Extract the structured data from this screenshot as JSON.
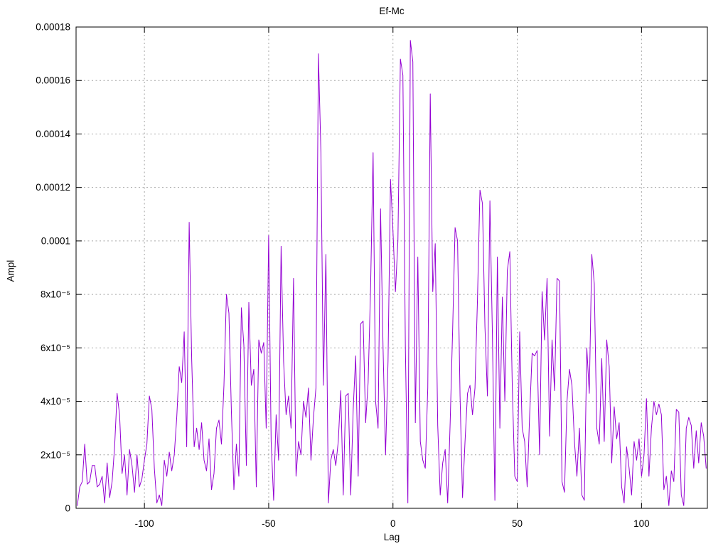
{
  "chart_data": {
    "type": "line",
    "title": "Ef-Mc",
    "xlabel": "Lag",
    "ylabel": "Ampl",
    "legend": "none",
    "grid": true,
    "background_color": "#ffffff",
    "line_color": "#9400d3",
    "grid_color": "#a6a6a6",
    "border_color": "#000000",
    "xlim": [
      -127.5,
      126.5
    ],
    "ylim": [
      0,
      0.00018
    ],
    "xticks": [
      {
        "v": -100,
        "label": "-100"
      },
      {
        "v": -50,
        "label": "-50"
      },
      {
        "v": 0,
        "label": "0"
      },
      {
        "v": 50,
        "label": "50"
      },
      {
        "v": 100,
        "label": "100"
      }
    ],
    "yticks": [
      {
        "v": 0,
        "label": "0"
      },
      {
        "v": 2e-05,
        "label": "2x10⁻⁵"
      },
      {
        "v": 4e-05,
        "label": "4x10⁻⁵"
      },
      {
        "v": 6e-05,
        "label": "6x10⁻⁵"
      },
      {
        "v": 8e-05,
        "label": "8x10⁻⁵"
      },
      {
        "v": 0.0001,
        "label": "0.0001"
      },
      {
        "v": 0.00012,
        "label": "0.00012"
      },
      {
        "v": 0.00014,
        "label": "0.00014"
      },
      {
        "v": 0.00016,
        "label": "0.00016"
      },
      {
        "v": 0.00018,
        "label": "0.00018"
      }
    ],
    "x_start": -127,
    "x_step": 1,
    "series": [
      {
        "name": "Ef-Mc",
        "values": [
          1e-06,
          8e-06,
          1e-05,
          2.4e-05,
          9e-06,
          1e-05,
          1.6e-05,
          1.6e-05,
          8e-06,
          9e-06,
          1.2e-05,
          2e-06,
          1.7e-05,
          4e-06,
          1e-05,
          2.3e-05,
          4.3e-05,
          3.5e-05,
          1.3e-05,
          2e-05,
          5e-06,
          2.2e-05,
          1.6e-05,
          6e-06,
          2e-05,
          8e-06,
          1.1e-05,
          1.8e-05,
          2.4e-05,
          4.2e-05,
          3.7e-05,
          1.5e-05,
          2e-06,
          5e-06,
          1e-06,
          1.8e-05,
          1.2e-05,
          2.1e-05,
          1.4e-05,
          2e-05,
          3.4e-05,
          5.3e-05,
          4.7e-05,
          6.6e-05,
          2.3e-05,
          0.000107,
          5.6e-05,
          2.3e-05,
          3e-05,
          2.2e-05,
          3.2e-05,
          1.8e-05,
          1.4e-05,
          2.6e-05,
          7e-06,
          1.3e-05,
          3e-05,
          3.3e-05,
          2.4e-05,
          4.6e-05,
          8e-05,
          7.3e-05,
          3.6e-05,
          7e-06,
          2.4e-05,
          1.2e-05,
          7.5e-05,
          6.1e-05,
          1.6e-05,
          7.7e-05,
          4.6e-05,
          5.2e-05,
          8e-06,
          6.3e-05,
          5.8e-05,
          6.2e-05,
          3e-05,
          0.000102,
          2.5e-05,
          3e-06,
          3.5e-05,
          1.8e-05,
          9.8e-05,
          5.5e-05,
          3.5e-05,
          4.2e-05,
          3e-05,
          8.6e-05,
          1.2e-05,
          2.5e-05,
          2e-05,
          4e-05,
          3.4e-05,
          4.5e-05,
          1.8e-05,
          3.4e-05,
          4.5e-05,
          0.00017,
          0.000133,
          4.6e-05,
          9.5e-05,
          2e-06,
          1.8e-05,
          2.2e-05,
          1.6e-05,
          2.5e-05,
          4.4e-05,
          5e-06,
          4.2e-05,
          4.3e-05,
          5e-06,
          3.7e-05,
          5.7e-05,
          1.2e-05,
          6.9e-05,
          7e-05,
          3.2e-05,
          4.7e-05,
          8.3e-05,
          0.000133,
          4e-05,
          3e-05,
          0.000112,
          6e-05,
          2e-05,
          5.5e-05,
          0.000123,
          0.000104,
          8.1e-05,
          0.0001,
          0.000168,
          0.000162,
          6e-05,
          2e-06,
          0.000175,
          0.000167,
          3.2e-05,
          9.4e-05,
          2.5e-05,
          1.8e-05,
          1.5e-05,
          4.5e-05,
          0.000155,
          8.1e-05,
          9.9e-05,
          3.1e-05,
          5e-06,
          1.7e-05,
          2.2e-05,
          2e-06,
          3.2e-05,
          6.7e-05,
          0.000105,
          0.0001,
          4.2e-05,
          4e-06,
          2.5e-05,
          4.3e-05,
          4.6e-05,
          3.5e-05,
          4.5e-05,
          7.8e-05,
          0.000119,
          0.000114,
          6.8e-05,
          4.2e-05,
          0.000115,
          6.5e-05,
          3e-06,
          9.4e-05,
          3e-05,
          7.9e-05,
          4e-05,
          8.9e-05,
          9.6e-05,
          4.5e-05,
          1.2e-05,
          1e-05,
          6.6e-05,
          3e-05,
          2.5e-05,
          8e-06,
          3.5e-05,
          5.8e-05,
          5.7e-05,
          5.9e-05,
          2e-05,
          8.1e-05,
          6.3e-05,
          8.6e-05,
          2.7e-05,
          6.3e-05,
          4.4e-05,
          8.6e-05,
          8.5e-05,
          1e-05,
          6e-06,
          4e-05,
          5.2e-05,
          4.6e-05,
          2.5e-05,
          1.2e-05,
          3e-05,
          5e-06,
          3e-06,
          6e-05,
          4.3e-05,
          9.5e-05,
          8.4e-05,
          3e-05,
          2.4e-05,
          5.6e-05,
          2.5e-05,
          6.3e-05,
          5.3e-05,
          1.7e-05,
          3.8e-05,
          2.6e-05,
          3.2e-05,
          8e-06,
          2e-06,
          2.3e-05,
          1.5e-05,
          5e-06,
          2.5e-05,
          1.8e-05,
          2.6e-05,
          1.2e-05,
          2e-05,
          4.1e-05,
          1.2e-05,
          3e-05,
          4e-05,
          3.5e-05,
          3.9e-05,
          3.5e-05,
          7e-06,
          1.2e-05,
          1e-06,
          1.4e-05,
          1e-05,
          3.7e-05,
          3.6e-05,
          5e-06,
          1e-06,
          3e-05,
          3.4e-05,
          3.1e-05,
          1.5e-05,
          2.9e-05,
          1.7e-05,
          3.2e-05,
          2.7e-05,
          1.5e-05
        ]
      }
    ]
  }
}
